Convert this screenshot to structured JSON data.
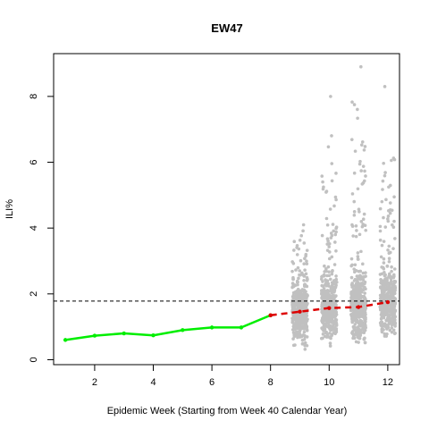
{
  "chart_data": {
    "type": "line",
    "title": "EW47",
    "xlabel": "Epidemic Week (Starting from Week 40 Calendar Year)",
    "ylabel": "ILI%",
    "xlim": [
      0.6,
      12.4
    ],
    "ylim": [
      -0.15,
      9.3
    ],
    "x_ticks": [
      "2",
      "4",
      "6",
      "8",
      "10",
      "12"
    ],
    "y_ticks": [
      "0",
      "2",
      "4",
      "6",
      "8"
    ],
    "grid": false,
    "legend": "none",
    "baseline": {
      "value": 1.78,
      "style": "dashed",
      "color": "#000000"
    },
    "series": [
      {
        "role": "observed",
        "style": "solid",
        "color": "#00ee00",
        "x": [
          1,
          2,
          3,
          4,
          5,
          6,
          7,
          8
        ],
        "y": [
          0.6,
          0.73,
          0.8,
          0.74,
          0.9,
          0.98,
          0.98,
          1.35
        ]
      },
      {
        "role": "forecast",
        "style": "dashed",
        "color": "#dd0000",
        "x": [
          8,
          9,
          10,
          11,
          12
        ],
        "y": [
          1.35,
          1.46,
          1.57,
          1.6,
          1.75
        ]
      }
    ],
    "simulations": {
      "color": "#c0c0c0",
      "weeks": [
        {
          "x": 9,
          "median": 1.45,
          "max": 4.1
        },
        {
          "x": 10,
          "median": 1.55,
          "max": 8.0
        },
        {
          "x": 11,
          "median": 1.6,
          "max": 8.9
        },
        {
          "x": 12,
          "median": 1.7,
          "max": 8.3
        }
      ]
    }
  }
}
